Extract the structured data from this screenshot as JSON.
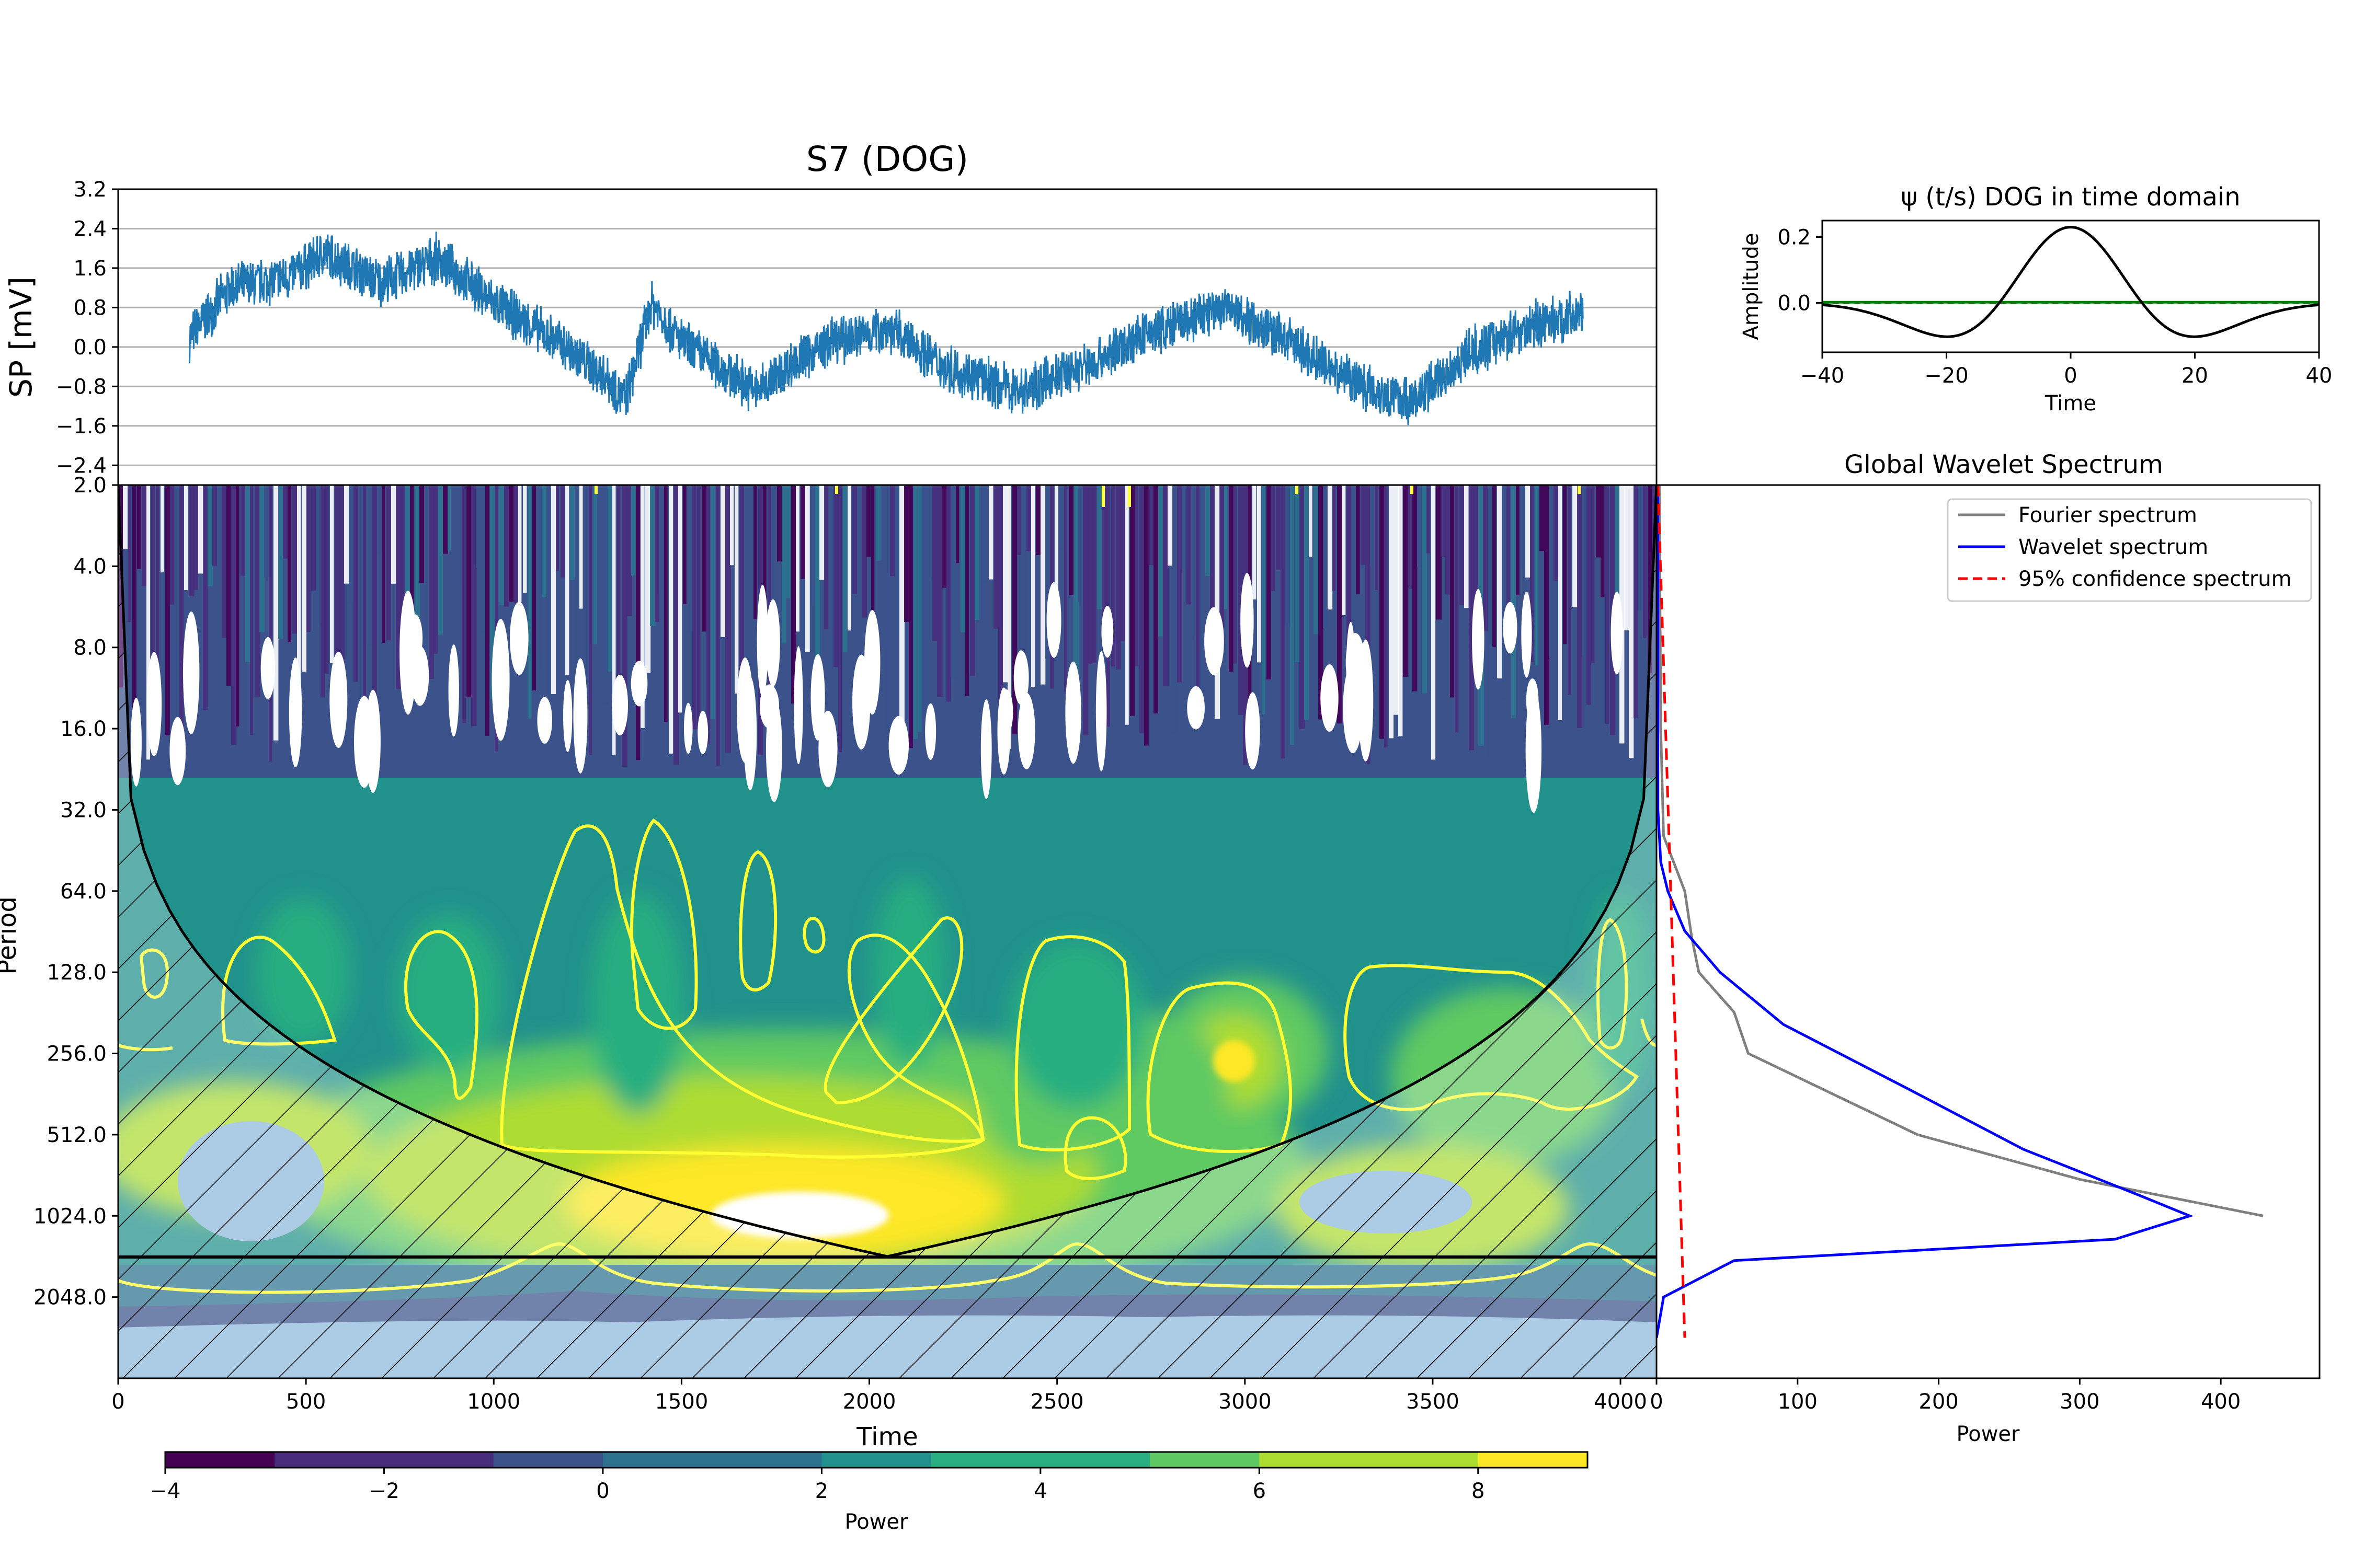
{
  "signal_panel": {
    "title": "S7 (DOG)",
    "ylabel": "SP [mV]"
  },
  "wavelet_panel": {
    "title": "ψ (t/s) DOG in time domain",
    "xlabel": "Time",
    "ylabel": "Amplitude"
  },
  "spectrum_panel": {
    "title": "Global Wavelet Spectrum",
    "xlabel": "Power",
    "legend": [
      "Fourier spectrum",
      "Wavelet spectrum",
      "95% confidence spectrum"
    ]
  },
  "scalogram_panel": {
    "xlabel": "Time",
    "ylabel": "Period"
  },
  "colorbar": {
    "label": "Power",
    "ticks": [
      "−4",
      "−2",
      "0",
      "2",
      "4",
      "6",
      "8"
    ]
  },
  "colors": {
    "signal": "#1f77b4",
    "fourier": "#808080",
    "wavelet_spec": "#0000ff",
    "confidence": "#ff0000",
    "contour": "#ffff33",
    "wavelet_shape": "#000000",
    "wavelet_imag": "#008000",
    "viridis": [
      "#440154",
      "#472d7b",
      "#3b528b",
      "#2c728e",
      "#21918c",
      "#28ae80",
      "#5ec962",
      "#addc30",
      "#fde725"
    ]
  },
  "chart_data": [
    {
      "type": "line",
      "name": "signal",
      "title": "S7 (DOG)",
      "ylabel": "SP [mV]",
      "xlim": [
        0,
        4096
      ],
      "ylim": [
        -2.8,
        3.2
      ],
      "yticks": [
        "3.2",
        "2.4",
        "1.6",
        "0.8",
        "0.0",
        "−0.8",
        "−1.6",
        "−2.4"
      ],
      "grid": "horizontal",
      "time_range": [
        190,
        3900
      ],
      "trend_x": [
        190,
        300,
        450,
        550,
        700,
        850,
        1000,
        1150,
        1300,
        1350,
        1420,
        1500,
        1700,
        1800,
        1900,
        2050,
        2200,
        2400,
        2600,
        2750,
        2950,
        3100,
        3200,
        3350,
        3450,
        3600,
        3750,
        3900
      ],
      "trend_y": [
        0.2,
        1.2,
        1.4,
        1.9,
        1.3,
        1.8,
        0.9,
        0.2,
        -0.6,
        -1.1,
        0.9,
        0.1,
        -0.9,
        -0.3,
        0.1,
        0.4,
        -0.4,
        -0.9,
        -0.3,
        0.3,
        0.8,
        0.2,
        -0.3,
        -0.9,
        -1.1,
        -0.1,
        0.4,
        0.7
      ],
      "noise_amplitude": 0.55
    },
    {
      "type": "line",
      "name": "wavelet",
      "title": "ψ (t/s) DOG in time domain",
      "xlabel": "Time",
      "ylabel": "Amplitude",
      "xlim": [
        -40,
        40
      ],
      "ylim": [
        -0.15,
        0.25
      ],
      "xticks": [
        "−40",
        "−20",
        "0",
        "20",
        "40"
      ],
      "yticks": [
        "0.2",
        "0.0"
      ],
      "ricker_sigma": 11.5,
      "peak": 0.23
    },
    {
      "type": "heatmap",
      "name": "wavelet power scalogram",
      "xlabel": "Time",
      "ylabel": "Period",
      "xlim": [
        0,
        4096
      ],
      "xticks": [
        "0",
        "500",
        "1000",
        "1500",
        "2000",
        "2500",
        "3000",
        "3500",
        "4000"
      ],
      "yticks": [
        "2.0",
        "4.0",
        "8.0",
        "16.0",
        "32.0",
        "64.0",
        "128.0",
        "256.0",
        "512.0",
        "1024.0",
        "2048.0"
      ],
      "colorbar_range": [
        -4,
        9
      ],
      "coi_peak_period": 1448
    },
    {
      "type": "line",
      "name": "global wavelet spectrum",
      "title": "Global Wavelet Spectrum",
      "xlabel": "Power",
      "xlim": [
        0,
        470
      ],
      "xticks": [
        "0",
        "100",
        "200",
        "300",
        "400"
      ],
      "legend_position": "top-right",
      "series": [
        {
          "name": "Fourier spectrum",
          "power": [
            2,
            3,
            5,
            20,
            25,
            30,
            55,
            65,
            185,
            300,
            430
          ],
          "period": [
            2,
            16,
            40,
            64,
            95,
            128,
            180,
            256,
            512,
            750,
            1024
          ]
        },
        {
          "name": "Wavelet spectrum",
          "power": [
            1,
            1,
            3,
            8,
            20,
            45,
            90,
            180,
            260,
            340,
            378,
            325,
            55,
            5,
            0
          ],
          "period": [
            2,
            32,
            50,
            64,
            90,
            128,
            200,
            350,
            580,
            850,
            1024,
            1250,
            1500,
            2048,
            2900
          ]
        },
        {
          "name": "95% confidence spectrum",
          "power": [
            1,
            20
          ],
          "period": [
            2,
            2900
          ]
        }
      ]
    }
  ]
}
